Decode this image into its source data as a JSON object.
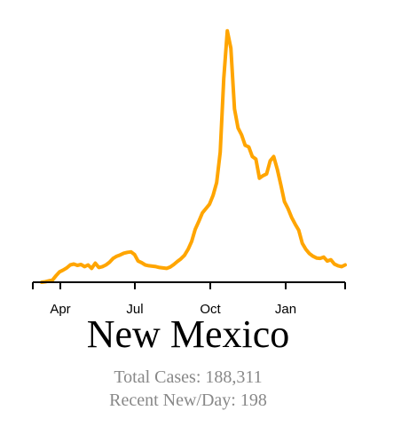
{
  "chart_data": {
    "type": "line",
    "title": "New Mexico",
    "stats": {
      "total_cases": "Total Cases: 188,311",
      "recent_per_day": "Recent New/Day: 198"
    },
    "xlabel": "",
    "ylabel": "",
    "x_ticks": [
      "Apr",
      "Jul",
      "Oct",
      "Jan"
    ],
    "grid": false,
    "color": "#FFA500",
    "series": [
      {
        "x": [
          0,
          4,
          8,
          12,
          16,
          20,
          24,
          28,
          32,
          36,
          40,
          44,
          48,
          52,
          56,
          60,
          64,
          68,
          72,
          76,
          80,
          84,
          88,
          92,
          96,
          100,
          104,
          108,
          112,
          116,
          120,
          124,
          128,
          132,
          136,
          140,
          144,
          148,
          152,
          156,
          160,
          164,
          168,
          172,
          176,
          180,
          184,
          188,
          192,
          196,
          200,
          204,
          208,
          212,
          216,
          220,
          224,
          228,
          232,
          236,
          240,
          244,
          248,
          252,
          256,
          260,
          264,
          268,
          272,
          276,
          280,
          284,
          288,
          292,
          296,
          300,
          304,
          308,
          312,
          316,
          320,
          324,
          328,
          332,
          336,
          340
        ],
        "y": [
          0,
          5,
          15,
          25,
          75,
          120,
          140,
          165,
          200,
          210,
          195,
          205,
          180,
          200,
          160,
          220,
          170,
          180,
          200,
          230,
          275,
          300,
          315,
          335,
          345,
          350,
          320,
          245,
          225,
          200,
          190,
          185,
          180,
          170,
          165,
          160,
          175,
          205,
          240,
          270,
          310,
          380,
          470,
          610,
          700,
          800,
          850,
          900,
          1000,
          1150,
          1500,
          2350,
          2900,
          2700,
          2000,
          1780,
          1700,
          1580,
          1560,
          1450,
          1420,
          1200,
          1230,
          1250,
          1400,
          1450,
          1300,
          1120,
          930,
          850,
          750,
          670,
          600,
          450,
          380,
          330,
          300,
          280,
          275,
          290,
          245,
          260,
          210,
          190,
          180,
          200
        ]
      }
    ],
    "xlim": [
      0,
      340
    ],
    "ylim": [
      0,
      3000
    ]
  }
}
